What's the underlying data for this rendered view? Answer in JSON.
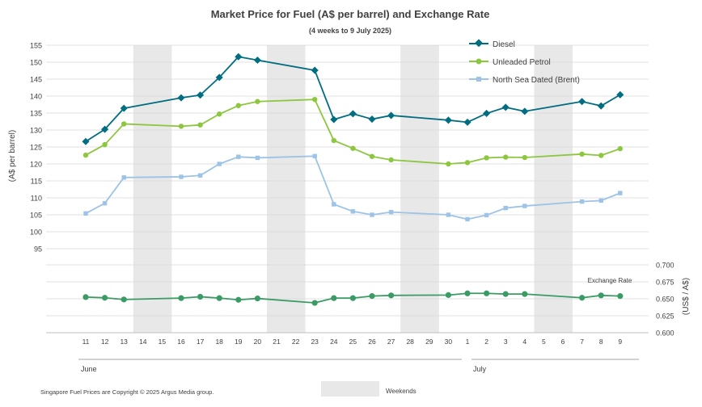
{
  "chart_data": {
    "type": "line",
    "title": "Market Price for Fuel (A$ per barrel) and Exchange Rate",
    "subtitle": "(4 weeks to 9 July 2025)",
    "ylabel": "(A$ per barrel)",
    "y2label": "(US$ / A$)",
    "ylim": [
      90,
      155
    ],
    "yticks": [
      "95",
      "100",
      "105",
      "110",
      "115",
      "120",
      "125",
      "130",
      "135",
      "140",
      "145",
      "150",
      "155"
    ],
    "y2lim": [
      0.6,
      0.7
    ],
    "y2ticks": [
      "0.600",
      "0.625",
      "0.650",
      "0.675",
      "0.700"
    ],
    "categories": [
      "11",
      "12",
      "13",
      "14",
      "15",
      "16",
      "17",
      "18",
      "19",
      "20",
      "21",
      "22",
      "23",
      "24",
      "25",
      "26",
      "27",
      "28",
      "29",
      "30",
      "1",
      "2",
      "3",
      "4",
      "5",
      "6",
      "7",
      "8",
      "9"
    ],
    "month_labels": [
      {
        "label": "June",
        "start": 0
      },
      {
        "label": "July",
        "start": 20
      }
    ],
    "weekend_bands": [
      [
        3,
        4
      ],
      [
        10,
        11
      ],
      [
        17,
        18
      ],
      [
        24,
        25
      ]
    ],
    "series": [
      {
        "name": "Diesel",
        "color": "#006d80",
        "marker": "diamond",
        "axis": "left",
        "values": [
          126.6,
          130.2,
          136.4,
          null,
          null,
          139.5,
          140.3,
          145.5,
          151.6,
          150.6,
          null,
          null,
          147.6,
          133.1,
          134.8,
          133.2,
          134.3,
          null,
          null,
          132.9,
          132.3,
          134.9,
          136.7,
          135.5,
          null,
          null,
          138.4,
          137.1,
          140.4
        ]
      },
      {
        "name": "Unleaded Petrol",
        "color": "#8dc63f",
        "marker": "circle",
        "axis": "left",
        "values": [
          122.6,
          125.7,
          131.8,
          null,
          null,
          131.1,
          131.5,
          134.7,
          137.2,
          138.4,
          null,
          null,
          139.0,
          126.9,
          124.6,
          122.2,
          121.2,
          null,
          null,
          120.0,
          120.4,
          121.8,
          122.0,
          121.9,
          null,
          null,
          122.9,
          122.5,
          124.5
        ]
      },
      {
        "name": "North Sea Dated (Brent)",
        "color": "#9dc3e6",
        "marker": "square",
        "axis": "left",
        "values": [
          105.4,
          108.4,
          116.0,
          null,
          null,
          116.2,
          116.6,
          120.0,
          122.1,
          121.8,
          null,
          null,
          122.3,
          108.1,
          106.0,
          105.0,
          105.8,
          null,
          null,
          105.0,
          103.7,
          104.9,
          107.0,
          107.6,
          null,
          null,
          108.9,
          109.2,
          111.4
        ]
      },
      {
        "name": "Exchange Rate",
        "color": "#3a9b65",
        "marker": "circle",
        "axis": "right",
        "values": [
          0.6525,
          0.6515,
          0.649,
          null,
          null,
          0.651,
          0.653,
          0.651,
          0.6485,
          0.6505,
          null,
          null,
          0.644,
          0.651,
          0.651,
          0.654,
          0.655,
          null,
          null,
          0.6555,
          0.658,
          0.658,
          0.657,
          0.657,
          null,
          null,
          0.6515,
          0.655,
          0.654
        ]
      }
    ],
    "exchange_label": "Exchange Rate"
  },
  "footer": {
    "copyright": "Singapore Fuel Prices are Copyright © 2025 Argus Media group.",
    "weekends_label": "Weekends"
  },
  "colors": {
    "weekend": "#e8e8e8",
    "grid": "#d9d9d9",
    "axis": "#bfbfbf",
    "text": "#404040"
  }
}
